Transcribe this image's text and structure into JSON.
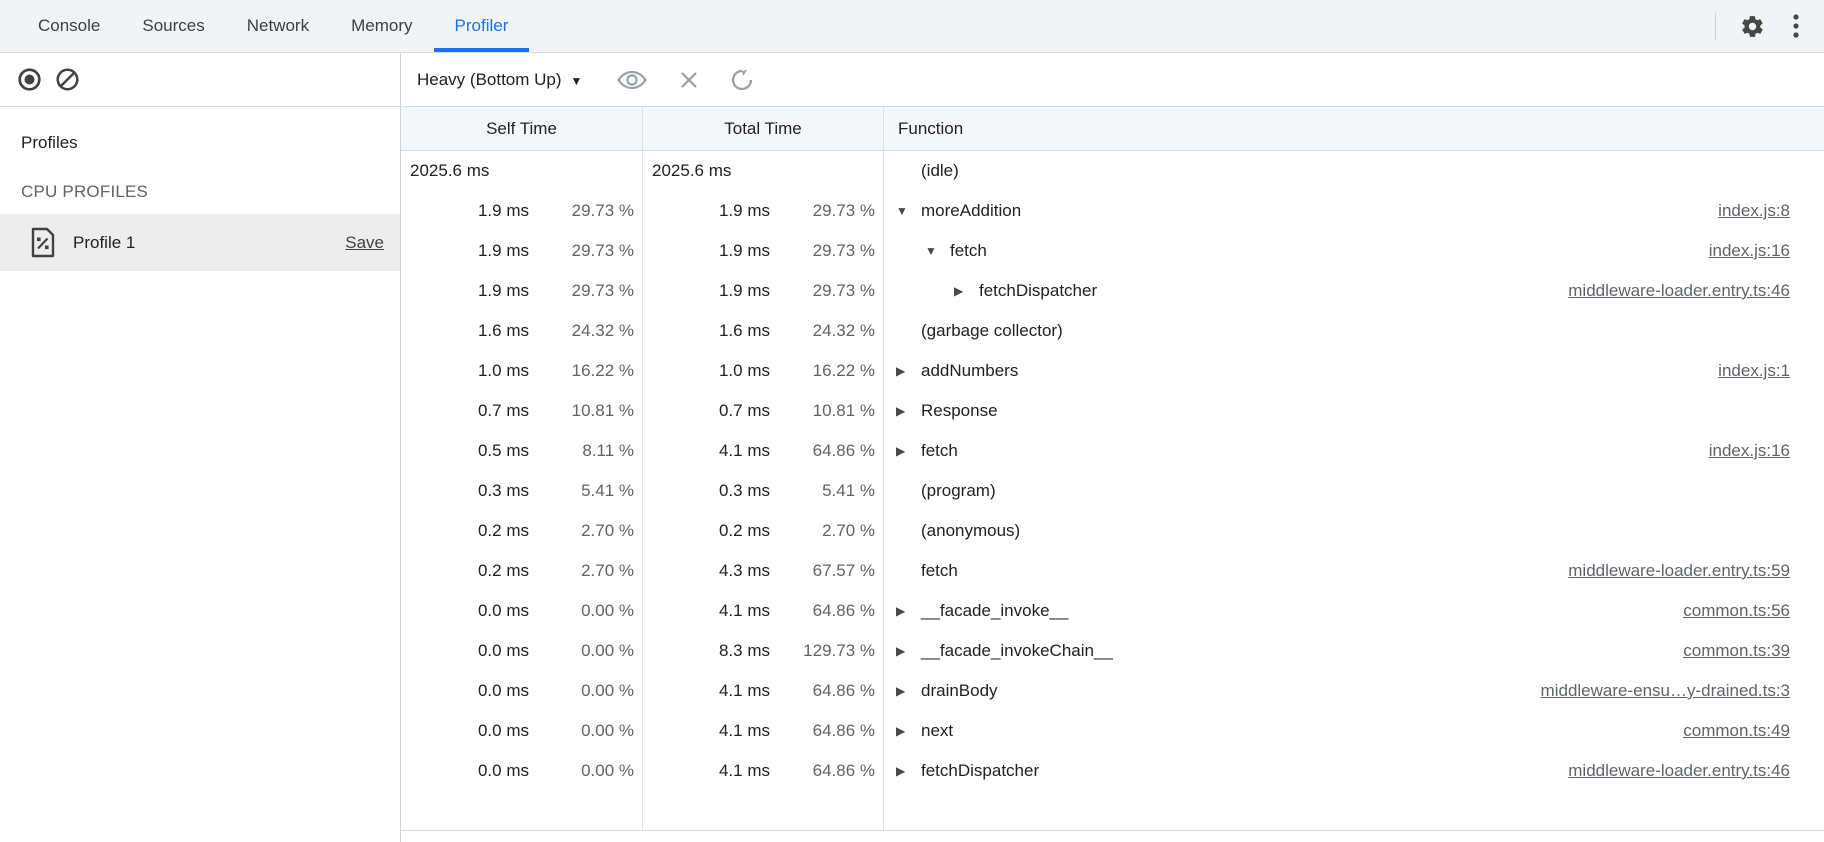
{
  "colors": {
    "accent": "#1a73e8",
    "tabbar_bg": "#f1f3f4",
    "header_bg": "#f4f6fa",
    "selected_row_bg": "#ededee",
    "icon_gray": "#9aa0a6",
    "icon_dark": "#424242",
    "link_gray": "#5f6368"
  },
  "tabs": {
    "items": [
      {
        "label": "Console",
        "active": false
      },
      {
        "label": "Sources",
        "active": false
      },
      {
        "label": "Network",
        "active": false
      },
      {
        "label": "Memory",
        "active": false
      },
      {
        "label": "Profiler",
        "active": true
      }
    ]
  },
  "toolbar": {
    "view_select_label": "Heavy (Bottom Up)",
    "icons": [
      "record-icon",
      "clear-icon",
      "eye-icon",
      "close-icon",
      "refresh-icon",
      "gear-icon",
      "kebab-menu-icon"
    ]
  },
  "sidebar": {
    "title": "Profiles",
    "section_label": "CPU PROFILES",
    "profile": {
      "name": "Profile 1",
      "save_label": "Save",
      "icon": "profile-document-icon",
      "selected": true
    }
  },
  "table": {
    "columns": [
      "Self Time",
      "Total Time",
      "Function"
    ],
    "rows": [
      {
        "self_ms": "2025.6 ms",
        "self_pct": "",
        "total_ms": "2025.6 ms",
        "total_pct": "",
        "fn": "(idle)",
        "link": "",
        "level": 0,
        "arrow": "",
        "ms_align": "left"
      },
      {
        "self_ms": "1.9 ms",
        "self_pct": "29.73 %",
        "total_ms": "1.9 ms",
        "total_pct": "29.73 %",
        "fn": "moreAddition",
        "link": "index.js:8",
        "level": 0,
        "arrow": "expanded"
      },
      {
        "self_ms": "1.9 ms",
        "self_pct": "29.73 %",
        "total_ms": "1.9 ms",
        "total_pct": "29.73 %",
        "fn": "fetch",
        "link": "index.js:16",
        "level": 1,
        "arrow": "expanded"
      },
      {
        "self_ms": "1.9 ms",
        "self_pct": "29.73 %",
        "total_ms": "1.9 ms",
        "total_pct": "29.73 %",
        "fn": "fetchDispatcher",
        "link": "middleware-loader.entry.ts:46",
        "level": 2,
        "arrow": "collapsed"
      },
      {
        "self_ms": "1.6 ms",
        "self_pct": "24.32 %",
        "total_ms": "1.6 ms",
        "total_pct": "24.32 %",
        "fn": "(garbage collector)",
        "link": "",
        "level": 0,
        "arrow": ""
      },
      {
        "self_ms": "1.0 ms",
        "self_pct": "16.22 %",
        "total_ms": "1.0 ms",
        "total_pct": "16.22 %",
        "fn": "addNumbers",
        "link": "index.js:1",
        "level": 0,
        "arrow": "collapsed"
      },
      {
        "self_ms": "0.7 ms",
        "self_pct": "10.81 %",
        "total_ms": "0.7 ms",
        "total_pct": "10.81 %",
        "fn": "Response",
        "link": "",
        "level": 0,
        "arrow": "collapsed"
      },
      {
        "self_ms": "0.5 ms",
        "self_pct": "8.11 %",
        "total_ms": "4.1 ms",
        "total_pct": "64.86 %",
        "fn": "fetch",
        "link": "index.js:16",
        "level": 0,
        "arrow": "collapsed"
      },
      {
        "self_ms": "0.3 ms",
        "self_pct": "5.41 %",
        "total_ms": "0.3 ms",
        "total_pct": "5.41 %",
        "fn": "(program)",
        "link": "",
        "level": 0,
        "arrow": ""
      },
      {
        "self_ms": "0.2 ms",
        "self_pct": "2.70 %",
        "total_ms": "0.2 ms",
        "total_pct": "2.70 %",
        "fn": "(anonymous)",
        "link": "",
        "level": 0,
        "arrow": ""
      },
      {
        "self_ms": "0.2 ms",
        "self_pct": "2.70 %",
        "total_ms": "4.3 ms",
        "total_pct": "67.57 %",
        "fn": "fetch",
        "link": "middleware-loader.entry.ts:59",
        "level": 0,
        "arrow": ""
      },
      {
        "self_ms": "0.0 ms",
        "self_pct": "0.00 %",
        "total_ms": "4.1 ms",
        "total_pct": "64.86 %",
        "fn": "__facade_invoke__",
        "link": "common.ts:56",
        "level": 0,
        "arrow": "collapsed"
      },
      {
        "self_ms": "0.0 ms",
        "self_pct": "0.00 %",
        "total_ms": "8.3 ms",
        "total_pct": "129.73 %",
        "fn": "__facade_invokeChain__",
        "link": "common.ts:39",
        "level": 0,
        "arrow": "collapsed"
      },
      {
        "self_ms": "0.0 ms",
        "self_pct": "0.00 %",
        "total_ms": "4.1 ms",
        "total_pct": "64.86 %",
        "fn": "drainBody",
        "link": "middleware-ensu…y-drained.ts:3",
        "level": 0,
        "arrow": "collapsed"
      },
      {
        "self_ms": "0.0 ms",
        "self_pct": "0.00 %",
        "total_ms": "4.1 ms",
        "total_pct": "64.86 %",
        "fn": "next",
        "link": "common.ts:49",
        "level": 0,
        "arrow": "collapsed"
      },
      {
        "self_ms": "0.0 ms",
        "self_pct": "0.00 %",
        "total_ms": "4.1 ms",
        "total_pct": "64.86 %",
        "fn": "fetchDispatcher",
        "link": "middleware-loader.entry.ts:46",
        "level": 0,
        "arrow": "collapsed"
      }
    ]
  }
}
